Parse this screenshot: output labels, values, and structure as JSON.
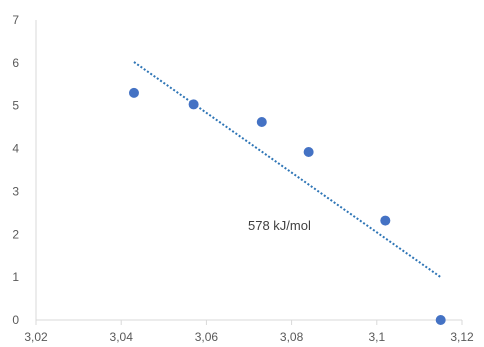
{
  "chart_data": {
    "type": "scatter",
    "title": "",
    "xlabel": "",
    "ylabel": "",
    "xlim": [
      3.02,
      3.12
    ],
    "ylim": [
      0,
      7
    ],
    "x_ticks": [
      "3,02",
      "3,04",
      "3,06",
      "3,08",
      "3,1",
      "3,12"
    ],
    "y_ticks": [
      "0",
      "1",
      "2",
      "3",
      "4",
      "5",
      "6",
      "7"
    ],
    "grid": false,
    "legend": "none",
    "series": [
      {
        "points": [
          {
            "x": 3.043,
            "y": 5.3
          },
          {
            "x": 3.057,
            "y": 5.03
          },
          {
            "x": 3.073,
            "y": 4.62
          },
          {
            "x": 3.084,
            "y": 3.92
          },
          {
            "x": 3.102,
            "y": 2.32
          },
          {
            "x": 3.115,
            "y": 0.0
          }
        ],
        "color": "#4472C4"
      }
    ],
    "trendline": {
      "type": "linear",
      "style": "dotted",
      "color": "#2E75B6",
      "start": {
        "x": 3.043,
        "y": 6.02
      },
      "end": {
        "x": 3.115,
        "y": 1.0
      }
    },
    "annotation": "578 kJ/mol",
    "axis_color": "#d9d9d9"
  }
}
